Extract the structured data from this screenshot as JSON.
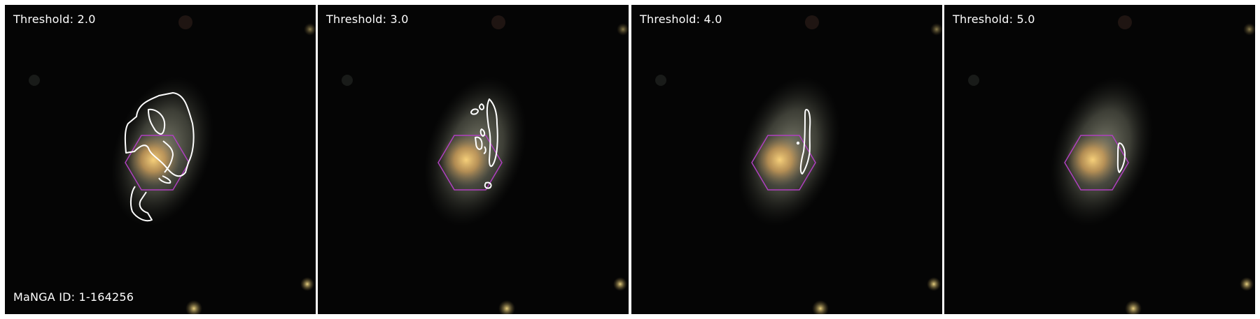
{
  "figure": {
    "manga_id_label": "MaNGA ID: 1-164256",
    "panels": [
      {
        "threshold_label": "Threshold: 2.0"
      },
      {
        "threshold_label": "Threshold: 3.0"
      },
      {
        "threshold_label": "Threshold: 4.0"
      },
      {
        "threshold_label": "Threshold: 5.0"
      }
    ],
    "colors": {
      "background": "#050505",
      "contour": "#ffffff",
      "hexagon": "#b040c0",
      "galaxy_core": "#e8b860",
      "galaxy_disk": "#8a8a76",
      "label_text": "#ffffff"
    }
  }
}
